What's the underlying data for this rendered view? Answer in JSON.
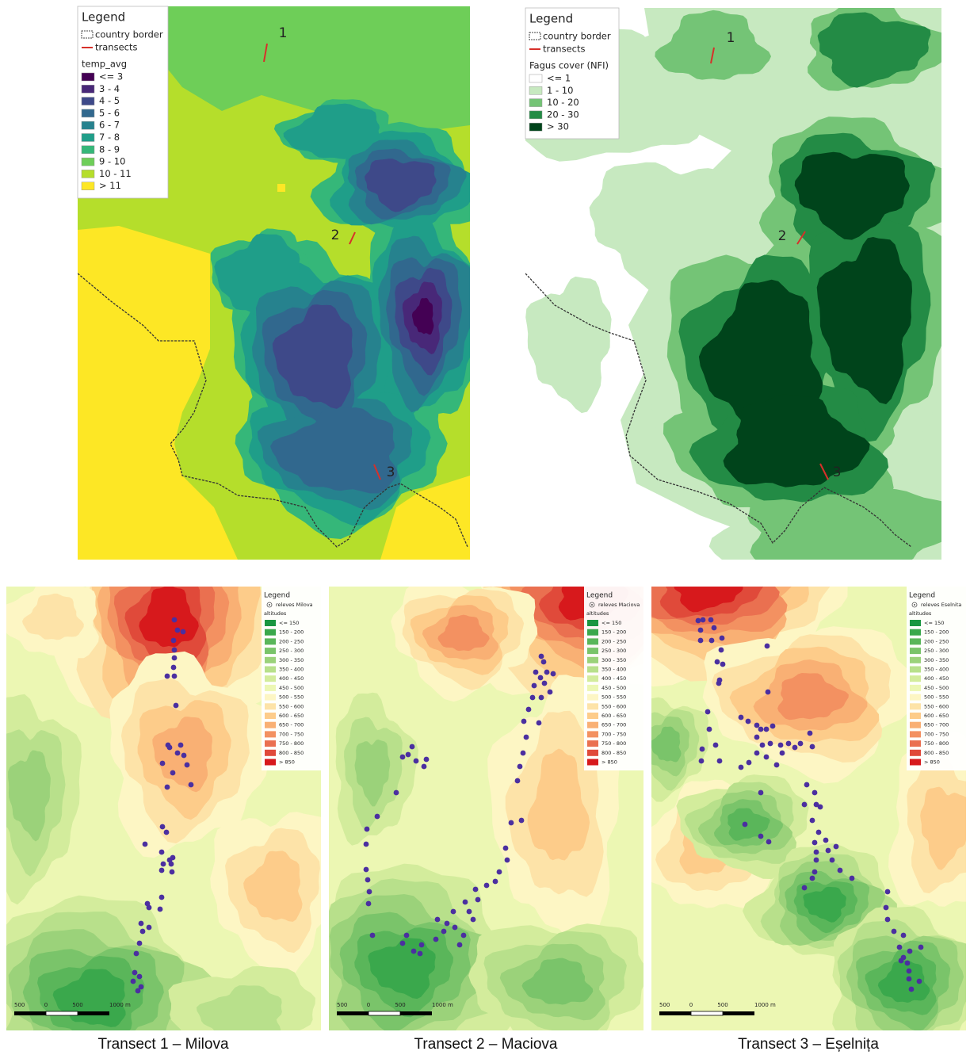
{
  "maps_top": [
    {
      "legend_title": "Legend",
      "border_label": "country border",
      "transects_label": "transects",
      "field": "temp_avg",
      "classes": [
        {
          "label": "<= 3",
          "color": "#440154"
        },
        {
          "label": "3 - 4",
          "color": "#482878"
        },
        {
          "label": "4 - 5",
          "color": "#3e4989"
        },
        {
          "label": "5 - 6",
          "color": "#31688e"
        },
        {
          "label": "6 - 7",
          "color": "#26828e"
        },
        {
          "label": "7 - 8",
          "color": "#1f9e89"
        },
        {
          "label": "8 - 9",
          "color": "#35b779"
        },
        {
          "label": "9 - 10",
          "color": "#6ece58"
        },
        {
          "label": "10 - 11",
          "color": "#b5de2b"
        },
        {
          "label": "> 11",
          "color": "#fde725"
        }
      ],
      "transect_labels": [
        "1",
        "2",
        "3"
      ]
    },
    {
      "legend_title": "Legend",
      "border_label": "country border",
      "transects_label": "transects",
      "field": "Fagus cover (NFI)",
      "classes": [
        {
          "label": "<= 1",
          "color": "#ffffff"
        },
        {
          "label": "1 - 10",
          "color": "#c7e9c0"
        },
        {
          "label": "10 - 20",
          "color": "#74c476"
        },
        {
          "label": "20 - 30",
          "color": "#238b45"
        },
        {
          "label": "> 30",
          "color": "#00441b"
        }
      ],
      "transect_labels": [
        "1",
        "2",
        "3"
      ]
    }
  ],
  "altitude_classes": [
    {
      "label": "<= 150",
      "color": "#1a9641"
    },
    {
      "label": "150 - 200",
      "color": "#3aa84c"
    },
    {
      "label": "200 - 250",
      "color": "#5ab65a"
    },
    {
      "label": "250 - 300",
      "color": "#7ac46a"
    },
    {
      "label": "300 - 350",
      "color": "#9bd27a"
    },
    {
      "label": "350 - 400",
      "color": "#b8e08b"
    },
    {
      "label": "400 - 450",
      "color": "#d3ec9c"
    },
    {
      "label": "450 - 500",
      "color": "#ecf7b3"
    },
    {
      "label": "500 - 550",
      "color": "#fdf6c4"
    },
    {
      "label": "550 - 600",
      "color": "#fde3a8"
    },
    {
      "label": "600 - 650",
      "color": "#fdcc8a"
    },
    {
      "label": "650 - 700",
      "color": "#f9b074"
    },
    {
      "label": "700 - 750",
      "color": "#f39161"
    },
    {
      "label": "750 - 800",
      "color": "#ea7050"
    },
    {
      "label": "800 - 850",
      "color": "#e04a3a"
    },
    {
      "label": "> 850",
      "color": "#d7191c"
    }
  ],
  "maps_bottom": [
    {
      "legend_title": "Legend",
      "releves_label": "releves Milova",
      "field": "altitudes",
      "scale_labels": [
        "500",
        "0",
        "500",
        "1000 m"
      ],
      "caption": "Transect 1 – Milova"
    },
    {
      "legend_title": "Legend",
      "releves_label": "releves Maciova",
      "field": "altitudes",
      "scale_labels": [
        "500",
        "0",
        "500",
        "1000 m"
      ],
      "caption": "Transect 2 – Maciova"
    },
    {
      "legend_title": "Legend",
      "releves_label": "releves Eselnita",
      "field": "altitudes",
      "scale_labels": [
        "500",
        "0",
        "500",
        "1000 m"
      ],
      "caption": "Transect 3 – Eșelnița"
    }
  ]
}
